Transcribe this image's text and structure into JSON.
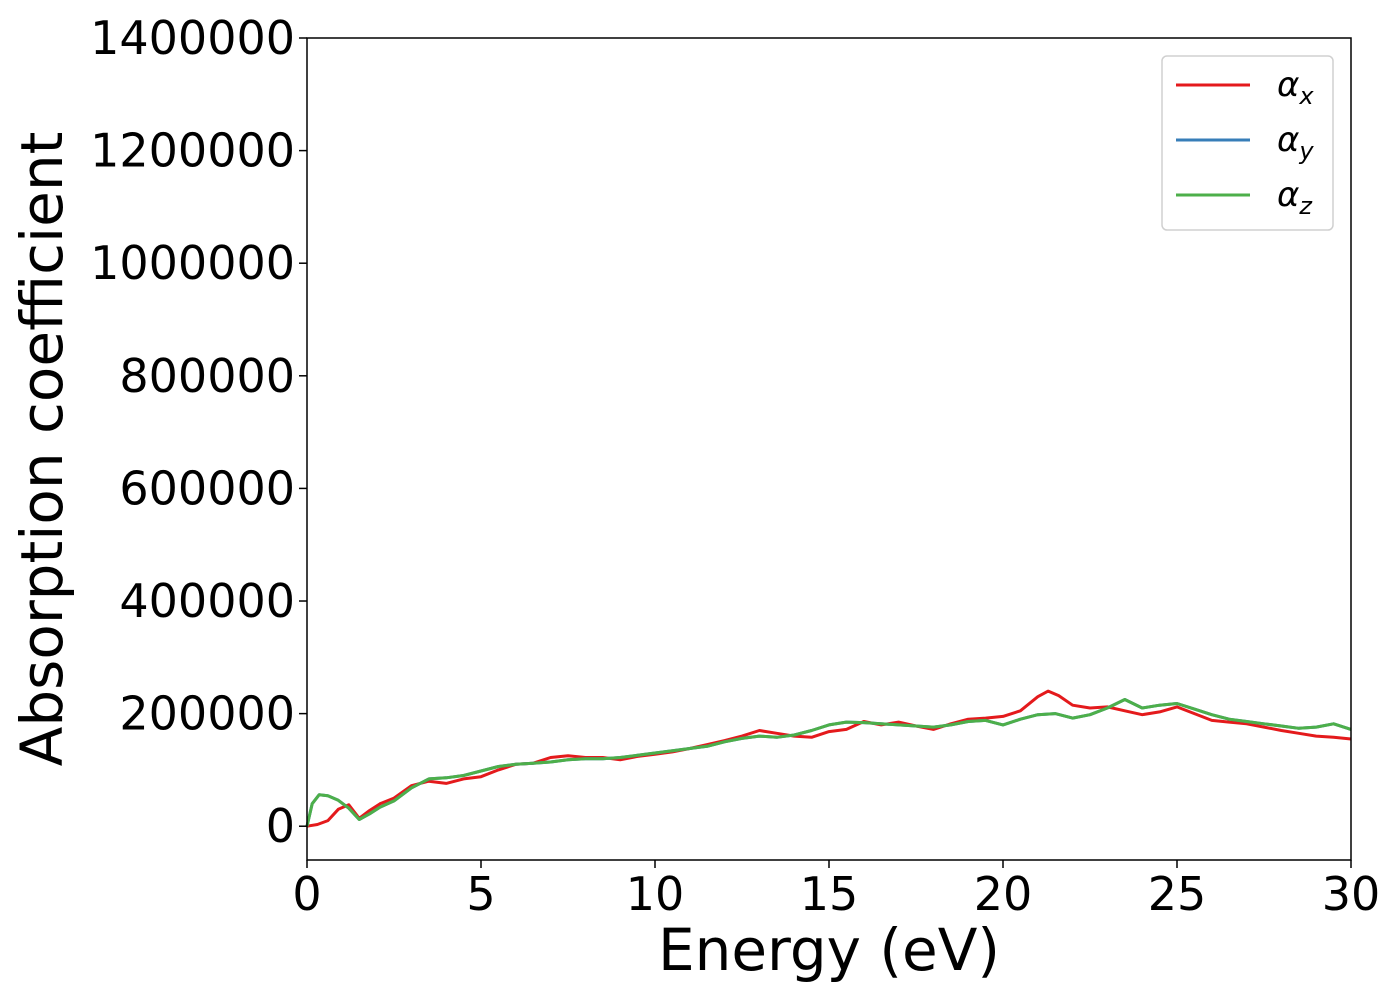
{
  "chart_data": {
    "type": "line",
    "title": "",
    "xlabel": "Energy (eV)",
    "ylabel": "Absorption coefficient",
    "xlim": [
      0,
      30
    ],
    "ylim": [
      -60000,
      1400000
    ],
    "xticks": [
      0,
      5,
      10,
      15,
      20,
      25,
      30
    ],
    "xtick_labels": [
      "0",
      "5",
      "10",
      "15",
      "20",
      "25",
      "30"
    ],
    "yticks": [
      0,
      200000,
      400000,
      600000,
      800000,
      1000000,
      1200000,
      1400000
    ],
    "ytick_labels": [
      "0",
      "200000",
      "400000",
      "600000",
      "800000",
      "1000000",
      "1200000",
      "1400000"
    ],
    "grid": false,
    "legend_position": "top-right",
    "series": [
      {
        "name": "α",
        "subscript": "x",
        "color": "#e41a1c",
        "x": [
          0,
          0.3,
          0.6,
          0.9,
          1.2,
          1.5,
          1.8,
          2.1,
          2.5,
          3.0,
          3.5,
          4.0,
          4.5,
          5.0,
          5.5,
          6.0,
          6.5,
          7.0,
          7.5,
          8.0,
          8.5,
          9.0,
          9.5,
          10.0,
          10.5,
          11.0,
          11.5,
          12.0,
          12.5,
          13.0,
          13.5,
          14.0,
          14.5,
          15.0,
          15.5,
          16.0,
          16.5,
          17.0,
          17.5,
          18.0,
          18.5,
          19.0,
          19.5,
          20.0,
          20.5,
          21.0,
          21.3,
          21.6,
          22.0,
          22.5,
          23.0,
          23.5,
          24.0,
          24.5,
          25.0,
          25.5,
          26.0,
          26.5,
          27.0,
          27.5,
          28.0,
          28.5,
          29.0,
          29.5,
          30.0
        ],
        "values": [
          0,
          3000,
          10000,
          30000,
          38000,
          14000,
          28000,
          40000,
          50000,
          72000,
          80000,
          76000,
          84000,
          88000,
          100000,
          110000,
          112000,
          122000,
          125000,
          122000,
          122000,
          118000,
          124000,
          128000,
          132000,
          138000,
          145000,
          152000,
          160000,
          170000,
          165000,
          160000,
          158000,
          168000,
          172000,
          186000,
          180000,
          185000,
          178000,
          172000,
          182000,
          190000,
          192000,
          195000,
          205000,
          230000,
          240000,
          232000,
          215000,
          210000,
          212000,
          205000,
          198000,
          203000,
          212000,
          200000,
          188000,
          185000,
          182000,
          176000,
          170000,
          165000,
          160000,
          158000,
          155000
        ]
      },
      {
        "name": "α",
        "subscript": "y",
        "color": "#377eb8",
        "x": [
          0,
          0.15,
          0.35,
          0.6,
          0.9,
          1.2,
          1.5,
          1.8,
          2.1,
          2.5,
          3.0,
          3.5,
          4.0,
          4.5,
          5.0,
          5.5,
          6.0,
          6.5,
          7.0,
          7.5,
          8.0,
          8.5,
          9.0,
          9.5,
          10.0,
          10.5,
          11.0,
          11.5,
          12.0,
          12.5,
          13.0,
          13.5,
          14.0,
          14.5,
          15.0,
          15.5,
          16.0,
          16.5,
          17.0,
          17.5,
          18.0,
          18.5,
          19.0,
          19.5,
          20.0,
          20.5,
          21.0,
          21.5,
          22.0,
          22.5,
          23.0,
          23.5,
          24.0,
          24.5,
          25.0,
          25.5,
          26.0,
          26.5,
          27.0,
          27.5,
          28.0,
          28.5,
          29.0,
          29.5,
          30.0
        ],
        "values": [
          0,
          40000,
          56000,
          54000,
          46000,
          32000,
          12000,
          22000,
          34000,
          45000,
          68000,
          84000,
          86000,
          90000,
          98000,
          106000,
          110000,
          112000,
          114000,
          118000,
          120000,
          120000,
          122000,
          126000,
          130000,
          134000,
          138000,
          142000,
          150000,
          156000,
          160000,
          158000,
          162000,
          170000,
          180000,
          185000,
          184000,
          182000,
          180000,
          178000,
          176000,
          180000,
          186000,
          188000,
          180000,
          190000,
          198000,
          200000,
          192000,
          198000,
          210000,
          225000,
          210000,
          215000,
          218000,
          208000,
          198000,
          190000,
          186000,
          182000,
          178000,
          174000,
          176000,
          182000,
          172000
        ]
      },
      {
        "name": "α",
        "subscript": "z",
        "color": "#4daf4a",
        "x": [
          0,
          0.15,
          0.35,
          0.6,
          0.9,
          1.2,
          1.5,
          1.8,
          2.1,
          2.5,
          3.0,
          3.5,
          4.0,
          4.5,
          5.0,
          5.5,
          6.0,
          6.5,
          7.0,
          7.5,
          8.0,
          8.5,
          9.0,
          9.5,
          10.0,
          10.5,
          11.0,
          11.5,
          12.0,
          12.5,
          13.0,
          13.5,
          14.0,
          14.5,
          15.0,
          15.5,
          16.0,
          16.5,
          17.0,
          17.5,
          18.0,
          18.5,
          19.0,
          19.5,
          20.0,
          20.5,
          21.0,
          21.5,
          22.0,
          22.5,
          23.0,
          23.5,
          24.0,
          24.5,
          25.0,
          25.5,
          26.0,
          26.5,
          27.0,
          27.5,
          28.0,
          28.5,
          29.0,
          29.5,
          30.0
        ],
        "values": [
          0,
          40000,
          56000,
          54000,
          46000,
          32000,
          12000,
          22000,
          34000,
          45000,
          68000,
          84000,
          86000,
          90000,
          98000,
          106000,
          110000,
          112000,
          114000,
          118000,
          120000,
          120000,
          122000,
          126000,
          130000,
          134000,
          138000,
          142000,
          150000,
          156000,
          160000,
          158000,
          162000,
          170000,
          180000,
          185000,
          184000,
          182000,
          180000,
          178000,
          176000,
          180000,
          186000,
          188000,
          180000,
          190000,
          198000,
          200000,
          192000,
          198000,
          210000,
          225000,
          210000,
          215000,
          218000,
          208000,
          198000,
          190000,
          186000,
          182000,
          178000,
          174000,
          176000,
          182000,
          172000
        ]
      }
    ]
  }
}
